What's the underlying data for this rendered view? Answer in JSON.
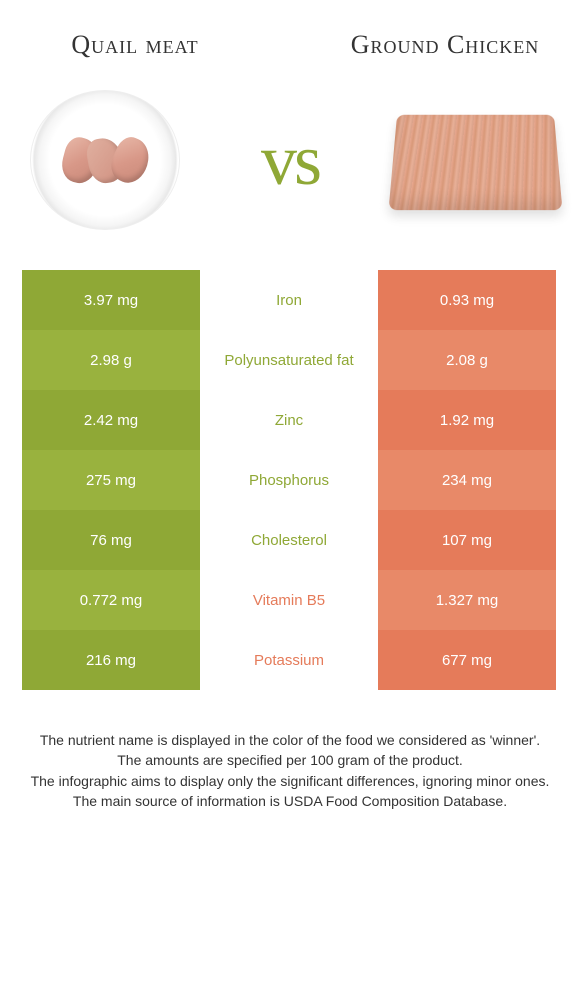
{
  "left_food": {
    "title": "Quail meat"
  },
  "right_food": {
    "title": "Ground Chicken"
  },
  "vs_label": "vs",
  "colors": {
    "green": "#8fa836",
    "green_alt": "#99b23e",
    "orange": "#e57b5a",
    "orange_alt": "#e88968",
    "text_white": "#ffffff"
  },
  "rows": [
    {
      "nutrient": "Iron",
      "left": "3.97 mg",
      "right": "0.93 mg",
      "winner": "left"
    },
    {
      "nutrient": "Polyunsaturated fat",
      "left": "2.98 g",
      "right": "2.08 g",
      "winner": "left"
    },
    {
      "nutrient": "Zinc",
      "left": "2.42 mg",
      "right": "1.92 mg",
      "winner": "left"
    },
    {
      "nutrient": "Phosphorus",
      "left": "275 mg",
      "right": "234 mg",
      "winner": "left"
    },
    {
      "nutrient": "Cholesterol",
      "left": "76 mg",
      "right": "107 mg",
      "winner": "left"
    },
    {
      "nutrient": "Vitamin B5",
      "left": "0.772 mg",
      "right": "1.327 mg",
      "winner": "right"
    },
    {
      "nutrient": "Potassium",
      "left": "216 mg",
      "right": "677 mg",
      "winner": "right"
    }
  ],
  "footer": {
    "line1": "The nutrient name is displayed in the color of the food we considered as 'winner'.",
    "line2": "The amounts are specified per 100 gram of the product.",
    "line3": "The infographic aims to display only the significant differences, ignoring minor ones.",
    "line4": "The main source of information is USDA Food Composition Database."
  }
}
